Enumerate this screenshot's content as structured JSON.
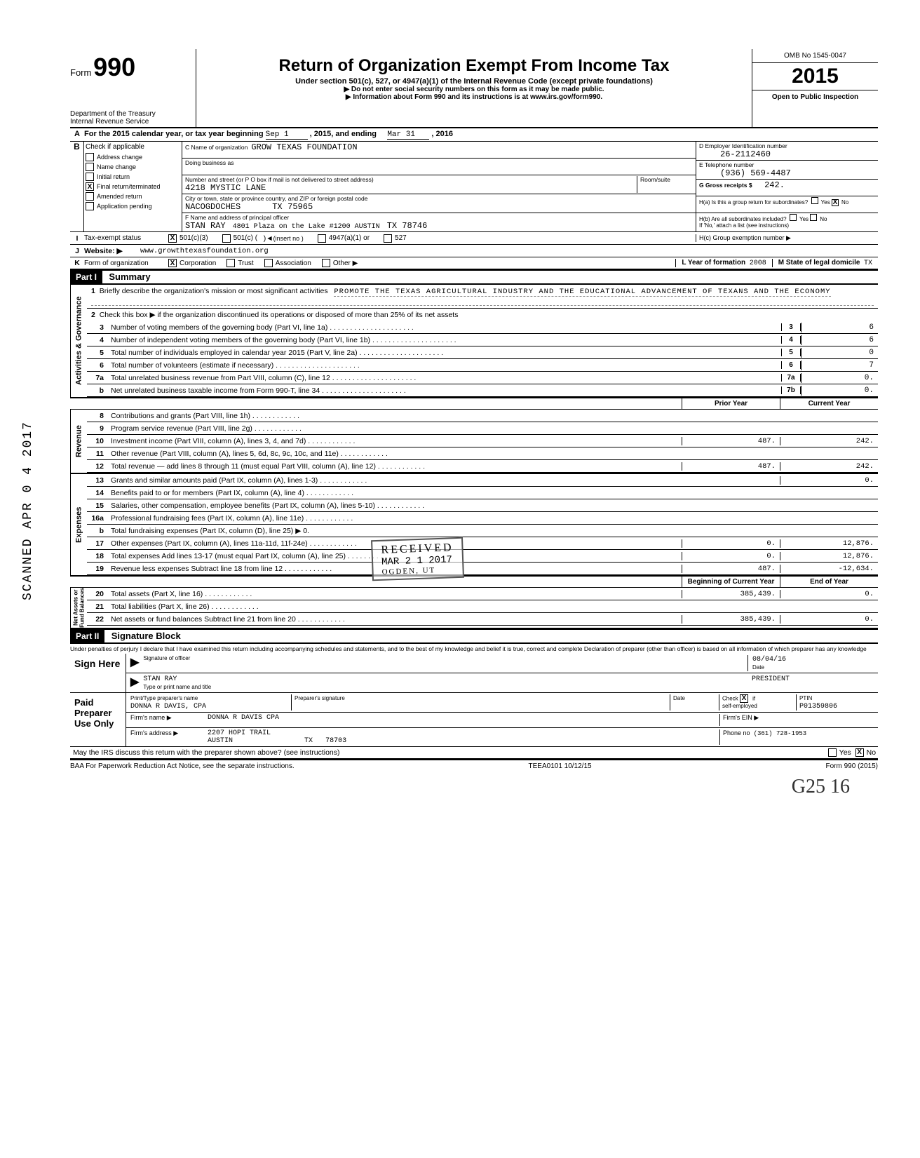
{
  "header": {
    "form_word": "Form",
    "form_number": "990",
    "dept1": "Department of the Treasury",
    "dept2": "Internal Revenue Service",
    "title": "Return of Organization Exempt From Income Tax",
    "sub1": "Under section 501(c), 527, or 4947(a)(1) of the Internal Revenue Code (except private foundations)",
    "sub2a": "▶ Do not enter social security numbers on this form as it may be made public.",
    "sub2b": "▶ Information about Form 990 and its instructions is at www.irs.gov/form990.",
    "omb": "OMB No  1545-0047",
    "year": "2015",
    "open": "Open to Public Inspection"
  },
  "rowA": {
    "text1": "For the 2015 calendar year, or tax year beginning",
    "begin": "Sep 1",
    "mid": ", 2015, and ending",
    "end": "Mar 31",
    "tail": ", 2016"
  },
  "B": {
    "hdr": "Check if applicable",
    "items": [
      "Address change",
      "Name change",
      "Initial return",
      "Final return/terminated",
      "Amended return",
      "Application pending"
    ],
    "checked_index": 3
  },
  "C": {
    "name_lbl": "C  Name of organization",
    "name": "GROW TEXAS FOUNDATION",
    "dba_lbl": "Doing business as",
    "addr_lbl": "Number and street (or P O  box if mail is not delivered to street address)",
    "addr": "4218 MYSTIC LANE",
    "room_lbl": "Room/suite",
    "city_lbl": "City or town, state or province  country, and ZIP or foreign postal code",
    "city": "NACOGDOCHES",
    "state": "TX",
    "zip": "75965",
    "F_lbl": "F  Name and address of principal officer",
    "F_name": "STAN RAY",
    "F_addr": "4801 Plaza on the Lake #1200  AUSTIN",
    "F_st": "TX 78746"
  },
  "D": {
    "lbl": "D  Employer Identification number",
    "val": "26-2112460"
  },
  "E": {
    "lbl": "E  Telephone number",
    "val": "(936) 569-4487"
  },
  "G": {
    "lbl": "G  Gross receipts  $",
    "val": "242."
  },
  "H": {
    "a": "H(a)  Is this a group return for subordinates?",
    "b": "H(b)  Are all subordinates included?",
    "b2": "If 'No,' attach a list  (see instructions)",
    "c": "H(c)  Group exemption number  ▶",
    "yes": "Yes",
    "no": "No",
    "a_checked": "No"
  },
  "I": {
    "lbl": "Tax-exempt status",
    "c3": "501(c)(3)",
    "c": "501(c) (",
    "insert": "(insert no )",
    "a1": "4947(a)(1) or",
    "s527": "527",
    "checked": "501(c)(3)"
  },
  "J": {
    "lbl": "Website: ▶",
    "val": "www.growthtexasfoundation.org"
  },
  "K": {
    "lbl": "Form of organization",
    "corp": "Corporation",
    "trust": "Trust",
    "assoc": "Association",
    "other": "Other ▶",
    "checked": "Corporation"
  },
  "L": {
    "lbl": "L  Year of formation",
    "val": "2008"
  },
  "M": {
    "lbl": "M  State of legal domicile",
    "val": "TX"
  },
  "part1": {
    "num": "Part I",
    "title": "Summary"
  },
  "summary": {
    "l1_lbl": "Briefly describe the organization's mission or most significant activities",
    "l1_val": "PROMOTE THE TEXAS AGRICULTURAL INDUSTRY AND THE EDUCATIONAL ADVANCEMENT OF TEXANS AND THE ECONOMY",
    "l2": "Check this box ▶       if the organization discontinued its operations or disposed of more than 25% of its net assets",
    "rows_right": [
      {
        "n": "3",
        "d": "Number of voting members of the governing body (Part VI, line 1a)",
        "b": "3",
        "v": "6"
      },
      {
        "n": "4",
        "d": "Number of independent voting members of the governing body (Part VI, line 1b)",
        "b": "4",
        "v": "6"
      },
      {
        "n": "5",
        "d": "Total number of individuals employed in calendar year 2015 (Part V, line 2a)",
        "b": "5",
        "v": "0"
      },
      {
        "n": "6",
        "d": "Total number of volunteers (estimate if necessary)",
        "b": "6",
        "v": "7"
      },
      {
        "n": "7a",
        "d": "Total unrelated business revenue from Part VIII, column (C), line 12",
        "b": "7a",
        "v": "0."
      },
      {
        "n": "b",
        "d": "Net unrelated business taxable income from Form 990-T, line 34",
        "b": "7b",
        "v": "0."
      }
    ],
    "col_hdr_prior": "Prior Year",
    "col_hdr_curr": "Current Year",
    "revenue": [
      {
        "n": "8",
        "d": "Contributions and grants (Part VIII, line 1h)",
        "p": "",
        "c": ""
      },
      {
        "n": "9",
        "d": "Program service revenue (Part VIII, line 2g)",
        "p": "",
        "c": ""
      },
      {
        "n": "10",
        "d": "Investment income (Part VIII, column (A), lines 3, 4, and 7d)",
        "p": "487.",
        "c": "242."
      },
      {
        "n": "11",
        "d": "Other revenue (Part VIII, column (A), lines 5, 6d, 8c, 9c, 10c, and 11e)",
        "p": "",
        "c": ""
      },
      {
        "n": "12",
        "d": "Total revenue — add lines 8 through 11 (must equal Part VIII, column (A), line 12)",
        "p": "487.",
        "c": "242."
      }
    ],
    "expenses": [
      {
        "n": "13",
        "d": "Grants and similar amounts paid (Part IX, column (A), lines 1-3)",
        "p": "",
        "c": "0."
      },
      {
        "n": "14",
        "d": "Benefits paid to or for members (Part IX, column (A), line 4)",
        "p": "",
        "c": ""
      },
      {
        "n": "15",
        "d": "Salaries, other compensation, employee benefits (Part IX, column (A), lines 5-10)",
        "p": "",
        "c": ""
      },
      {
        "n": "16a",
        "d": "Professional fundraising fees (Part IX, column (A), line 11e)",
        "p": "",
        "c": ""
      },
      {
        "n": "b",
        "d": "Total fundraising expenses (Part IX, column (D), line 25) ▶                                0.",
        "p": "",
        "c": "",
        "noval": true
      },
      {
        "n": "17",
        "d": "Other expenses (Part IX, column (A), lines 11a-11d, 11f-24e)",
        "p": "0.",
        "c": "12,876."
      },
      {
        "n": "18",
        "d": "Total expenses  Add lines 13-17 (must equal Part IX, column (A), line 25)",
        "p": "0.",
        "c": "12,876."
      },
      {
        "n": "19",
        "d": "Revenue less expenses  Subtract line 18 from line 12",
        "p": "487.",
        "c": "-12,634."
      }
    ],
    "net_hdr_b": "Beginning of Current Year",
    "net_hdr_e": "End of Year",
    "net": [
      {
        "n": "20",
        "d": "Total assets (Part X, line 16)",
        "p": "385,439.",
        "c": "0."
      },
      {
        "n": "21",
        "d": "Total liabilities (Part X, line 26)",
        "p": "",
        "c": ""
      },
      {
        "n": "22",
        "d": "Net assets or fund balances  Subtract line 21 from line 20",
        "p": "385,439.",
        "c": "0."
      }
    ]
  },
  "stamp": {
    "rec": "RECEIVED",
    "date": "MAR 2 1 2017",
    "og": "OGDEN, UT"
  },
  "side_stamp": "SCANNED APR 0 4 2017",
  "part2": {
    "num": "Part II",
    "title": "Signature Block"
  },
  "perjury": "Under penalties of perjury  I declare that I have examined this return  including accompanying schedules and statements, and to the best of my knowledge and belief  it is true, correct  and complete  Declaration of preparer (other than officer) is based on all information of which preparer has any knowledge",
  "sign": {
    "here": "Sign Here",
    "sig_lbl": "Signature of officer",
    "date_lbl": "Date",
    "date": "08/04/16",
    "name": "STAN RAY",
    "title": "PRESIDENT",
    "name_lbl": "Type or print name and title"
  },
  "paid": {
    "hdr": "Paid Preparer Use Only",
    "pn_lbl": "Print/Type preparer's name",
    "pn": "DONNA R DAVIS, CPA",
    "ps_lbl": "Preparer's signature",
    "dt_lbl": "Date",
    "chk_lbl": "Check        if self-employed",
    "chk_x": "X",
    "ptin_lbl": "PTIN",
    "ptin": "P01359806",
    "fn_lbl": "Firm's name     ▶",
    "fn": "DONNA R DAVIS CPA",
    "fa_lbl": "Firm's address  ▶",
    "fa1": "2207 HOPI TRAIL",
    "fa2": "AUSTIN",
    "fa_st": "TX",
    "fa_zip": "78703",
    "ein_lbl": "Firm's EIN  ▶",
    "ph_lbl": "Phone no",
    "ph": "(361) 728-1953"
  },
  "discuss": {
    "q": "May the IRS discuss this return with the preparer shown above? (see instructions)",
    "yes": "Yes",
    "no": "No",
    "checked": "No"
  },
  "footer": {
    "l": "BAA  For Paperwork Reduction Act Notice, see the separate instructions.",
    "m": "TEEA0101  10/12/15",
    "r": "Form 990 (2015)"
  },
  "hand": "G25  16"
}
